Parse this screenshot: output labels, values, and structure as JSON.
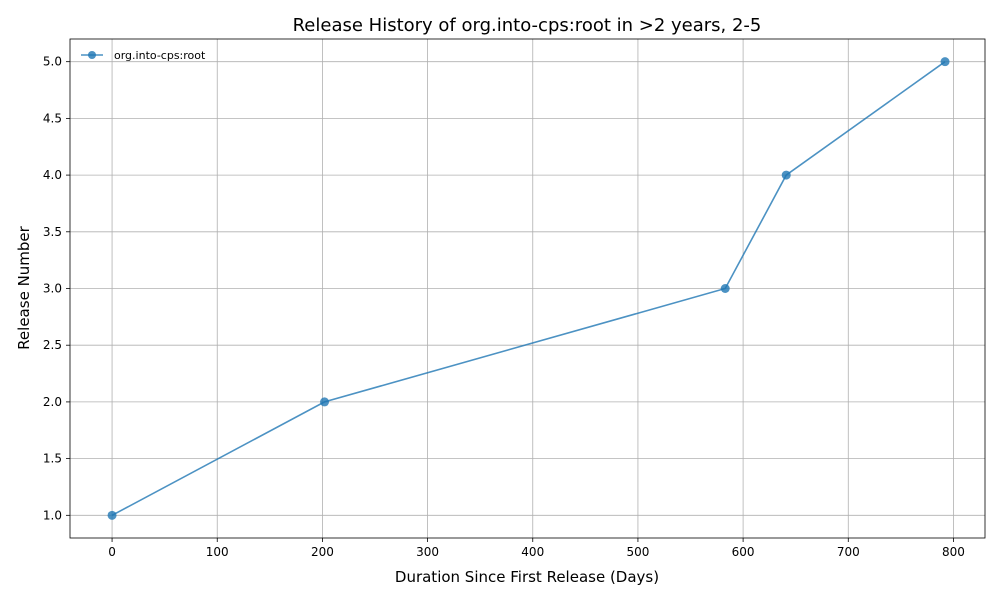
{
  "chart_data": {
    "type": "line",
    "title": "Release History of org.into-cps:root in >2 years, 2-5",
    "xlabel": "Duration Since First Release (Days)",
    "ylabel": "Release Number",
    "xlim": [
      -40,
      830
    ],
    "ylim": [
      0.8,
      5.2
    ],
    "xticks": [
      0,
      100,
      200,
      300,
      400,
      500,
      600,
      700,
      800
    ],
    "yticks": [
      1.0,
      1.5,
      2.0,
      2.5,
      3.0,
      3.5,
      4.0,
      4.5,
      5.0
    ],
    "xtick_labels": [
      "0",
      "100",
      "200",
      "300",
      "400",
      "500",
      "600",
      "700",
      "800"
    ],
    "ytick_labels": [
      "1.0",
      "1.5",
      "2.0",
      "2.5",
      "3.0",
      "3.5",
      "4.0",
      "4.5",
      "5.0"
    ],
    "grid": true,
    "legend_position": "top-left",
    "series": [
      {
        "name": "org.into-cps:root",
        "color": "#1f77b4",
        "marker": "circle",
        "x": [
          0,
          202,
          583,
          641,
          792
        ],
        "y": [
          1,
          2,
          3,
          4,
          5
        ]
      }
    ]
  }
}
